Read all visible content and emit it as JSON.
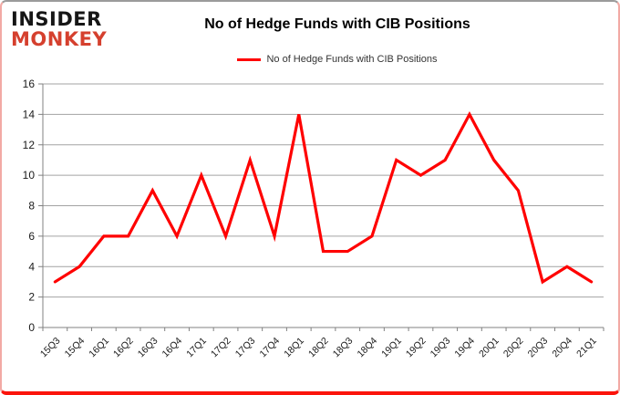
{
  "logo": {
    "line1": "INSIDER",
    "line2": "MONKEY"
  },
  "title": "No of Hedge Funds with CIB Positions",
  "legend": {
    "label": "No of Hedge Funds with CIB Positions",
    "line_color": "#ff0000"
  },
  "chart_data": {
    "type": "line",
    "title": "No of Hedge Funds with CIB Positions",
    "categories": [
      "15Q3",
      "15Q4",
      "16Q1",
      "16Q2",
      "16Q3",
      "16Q4",
      "17Q1",
      "17Q2",
      "17Q3",
      "17Q4",
      "18Q1",
      "18Q2",
      "18Q3",
      "18Q4",
      "19Q1",
      "19Q2",
      "19Q3",
      "19Q4",
      "20Q1",
      "20Q2",
      "20Q3",
      "20Q4",
      "21Q1"
    ],
    "series": [
      {
        "name": "No of Hedge Funds with CIB Positions",
        "values": [
          3,
          4,
          6,
          6,
          9,
          6,
          10,
          6,
          11,
          6,
          14,
          5,
          5,
          6,
          11,
          10,
          11,
          14,
          11,
          9,
          3,
          4,
          3
        ]
      }
    ],
    "xlabel": "",
    "ylabel": "",
    "ylim": [
      0,
      16
    ],
    "ytick_step": 2,
    "grid": true,
    "legend_position": "top-center",
    "line_color": "#ff0000",
    "grid_color": "#a3a3a3",
    "axis_color": "#808080"
  }
}
